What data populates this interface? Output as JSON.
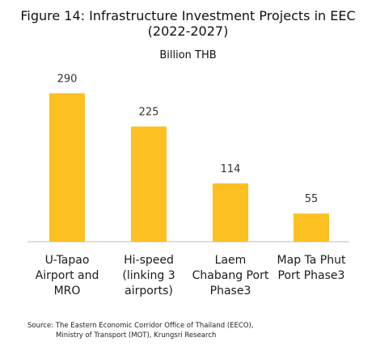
{
  "chart_data": {
    "type": "bar",
    "title": "Figure 14:  Infrastructure Investment Projects in EEC",
    "title_line2": "(2022-2027)",
    "subtitle": "Billion THB",
    "categories": [
      "U-Tapao Airport and MRO",
      "Hi-speed (linking 3 airports)",
      "Laem Chabang Port Phase3",
      "Map Ta Phut Port Phase3"
    ],
    "category_lines": [
      [
        "U-Tapao",
        "Airport and",
        "MRO"
      ],
      [
        "Hi-speed",
        "(linking 3",
        "airports)"
      ],
      [
        "Laem",
        "Chabang Port",
        "Phase3"
      ],
      [
        "Map Ta Phut",
        "Port Phase3"
      ]
    ],
    "values": [
      290,
      225,
      114,
      55
    ],
    "data_labels": [
      "290",
      "225",
      "114",
      "55"
    ],
    "ylim": [
      0,
      300
    ],
    "bar_color": "#FCC020",
    "grid": false,
    "legend": "none"
  },
  "source": {
    "line1": "Source: The Eastern Economic Corridor Office of Thailand (EECO),",
    "line2": "Ministry of Transport (MOT), Krungsri Research"
  }
}
